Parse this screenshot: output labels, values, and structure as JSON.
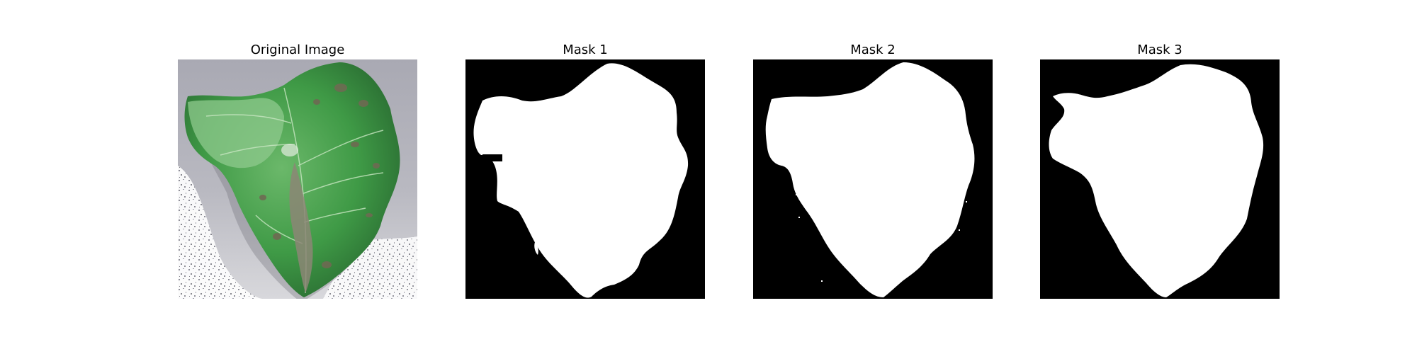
{
  "figure": {
    "panels": [
      {
        "title": "Original Image"
      },
      {
        "title": "Mask 1"
      },
      {
        "title": "Mask 2"
      },
      {
        "title": "Mask 3"
      }
    ]
  },
  "colors": {
    "mask_background": "#000000",
    "mask_foreground": "#ffffff",
    "photo_background": "#b8b8bf",
    "leaf_green": "#3f9a46",
    "leaf_light": "#8fc98e",
    "leaf_dark": "#2b6f33",
    "lesion": "#6e6a52"
  }
}
